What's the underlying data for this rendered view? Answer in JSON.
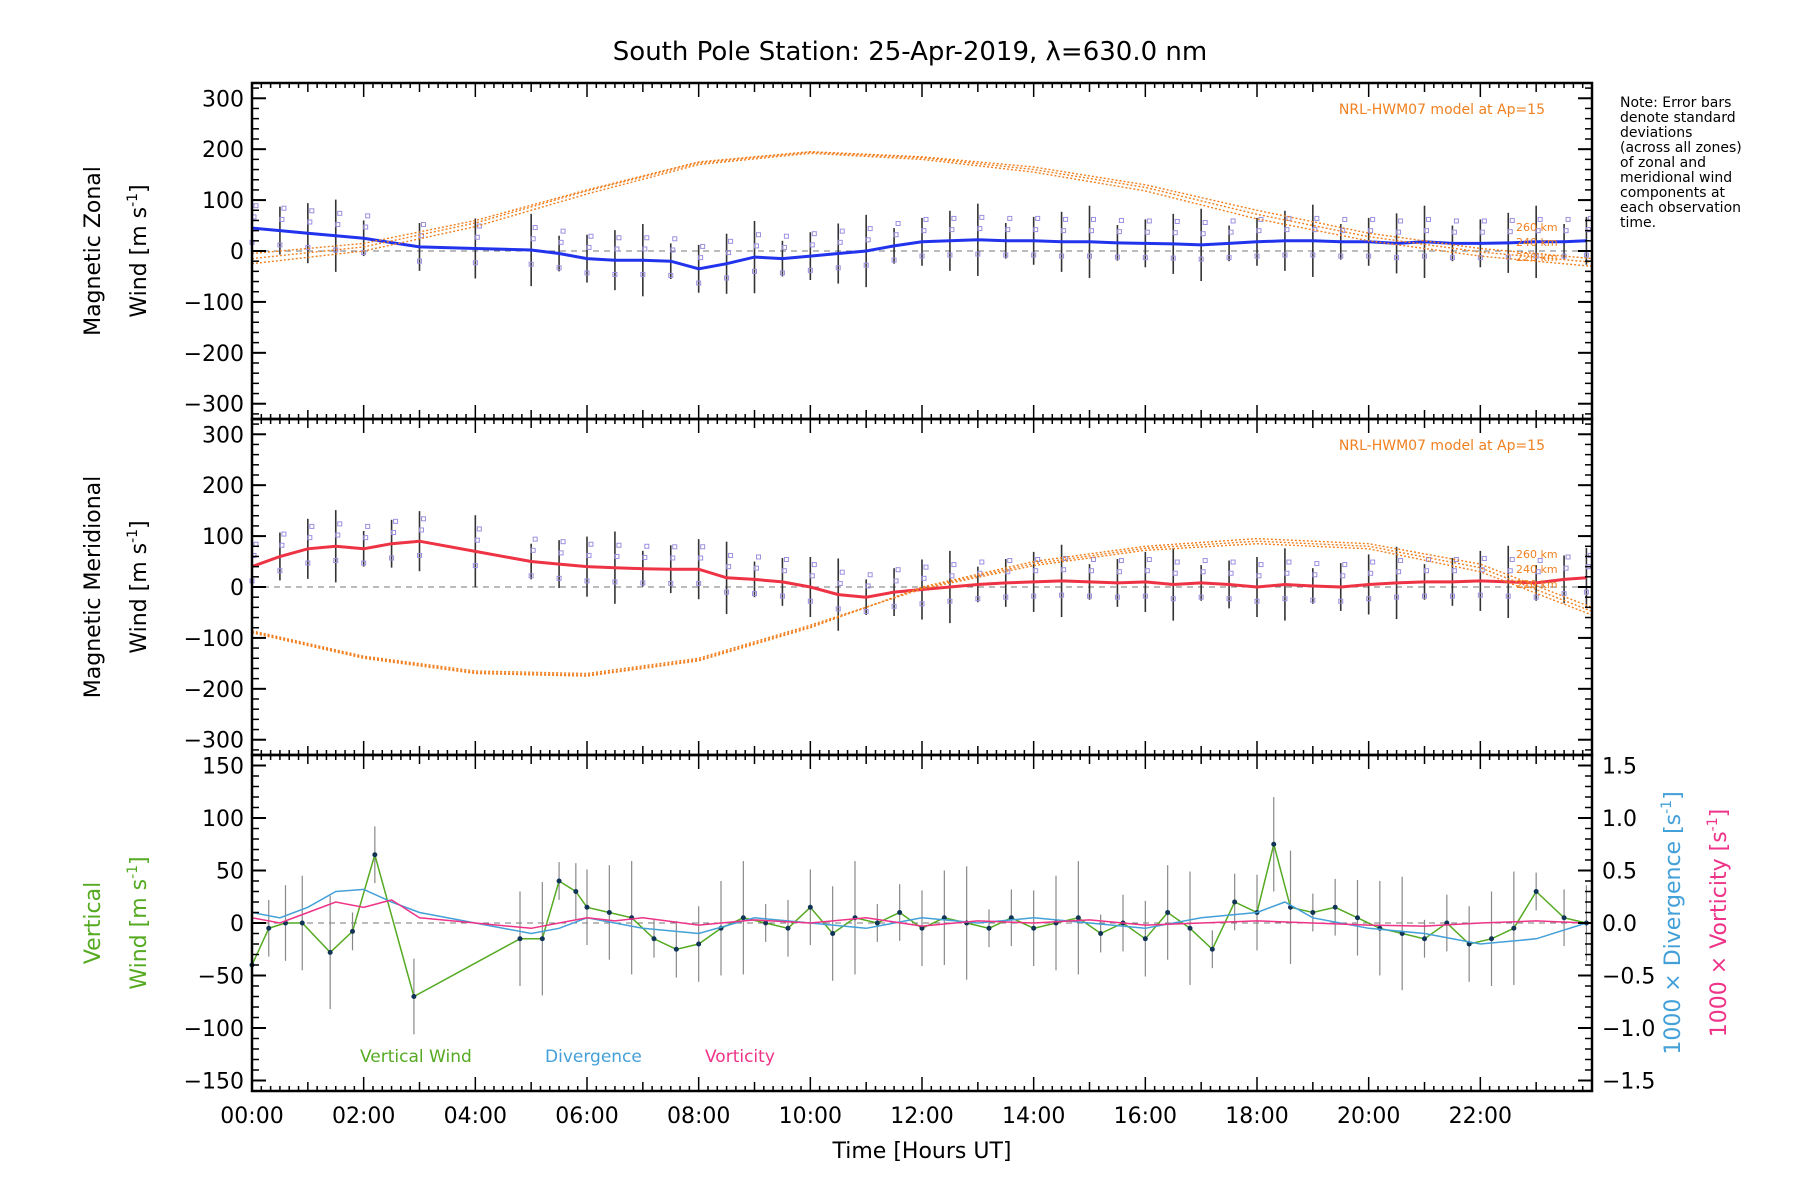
{
  "chart_data": [
    {
      "type": "line",
      "panel": "zonal",
      "title": "South Pole Station: 25-Apr-2019, λ=630.0 nm",
      "ylabel_line1": "Magnetic Zonal",
      "ylabel_line2": "Wind [m s",
      "ylabel_exp": "-1",
      "ylabel_close": "]",
      "ylim": [
        -330,
        330
      ],
      "yticks": [
        300,
        200,
        100,
        0,
        -100,
        -200,
        -300
      ],
      "xlim": [
        0,
        24
      ],
      "model_label": "NRL-HWM07 model at Ap=15",
      "model_altitudes": [
        "260 km",
        "240 km",
        "220 km"
      ],
      "series": [
        {
          "name": "Zonal wind",
          "color": "#2233ee",
          "x": [
            0,
            0.5,
            1,
            1.5,
            2,
            3,
            4,
            5,
            5.5,
            6,
            6.5,
            7,
            7.5,
            8,
            8.5,
            9,
            9.5,
            10,
            10.5,
            11,
            11.5,
            12,
            12.5,
            13,
            13.5,
            14,
            14.5,
            15,
            15.5,
            16,
            16.5,
            17,
            17.5,
            18,
            18.5,
            19,
            19.5,
            20,
            20.5,
            21,
            21.5,
            22,
            22.5,
            23,
            23.5,
            23.9
          ],
          "values": [
            45,
            40,
            35,
            30,
            25,
            8,
            5,
            2,
            -5,
            -15,
            -18,
            -18,
            -20,
            -35,
            -25,
            -12,
            -15,
            -10,
            -5,
            0,
            10,
            18,
            20,
            22,
            20,
            20,
            18,
            18,
            16,
            15,
            14,
            12,
            15,
            18,
            20,
            20,
            18,
            18,
            15,
            18,
            15,
            15,
            16,
            18,
            18,
            20
          ]
        },
        {
          "name": "HWM07 260 km",
          "color": "#f08020",
          "x": [
            0,
            2,
            4,
            6,
            8,
            10,
            12,
            14,
            16,
            18,
            20,
            22,
            24
          ],
          "values": [
            -5,
            15,
            60,
            120,
            175,
            195,
            185,
            165,
            130,
            80,
            35,
            5,
            -15
          ]
        },
        {
          "name": "HWM07 240 km",
          "color": "#f08020",
          "x": [
            0,
            2,
            4,
            6,
            8,
            10,
            12,
            14,
            16,
            18,
            20,
            22,
            24
          ],
          "values": [
            -15,
            8,
            55,
            118,
            173,
            194,
            183,
            160,
            125,
            72,
            28,
            -2,
            -22
          ]
        },
        {
          "name": "HWM07 220 km",
          "color": "#f08020",
          "x": [
            0,
            2,
            4,
            6,
            8,
            10,
            12,
            14,
            16,
            18,
            20,
            22,
            24
          ],
          "values": [
            -25,
            0,
            48,
            112,
            170,
            192,
            180,
            155,
            118,
            63,
            20,
            -10,
            -30
          ]
        }
      ]
    },
    {
      "type": "line",
      "panel": "meridional",
      "ylabel_line1": "Magnetic Meridional",
      "ylabel_line2": "Wind [m s",
      "ylabel_exp": "-1",
      "ylabel_close": "]",
      "ylim": [
        -330,
        330
      ],
      "yticks": [
        300,
        200,
        100,
        0,
        -100,
        -200,
        -300
      ],
      "xlim": [
        0,
        24
      ],
      "model_label": "NRL-HWM07 model at Ap=15",
      "model_altitudes": [
        "260 km",
        "240 km",
        "220 km"
      ],
      "series": [
        {
          "name": "Meridional wind",
          "color": "#ee3344",
          "x": [
            0,
            0.5,
            1,
            1.5,
            2,
            2.5,
            3,
            4,
            5,
            5.5,
            6,
            6.5,
            7,
            7.5,
            8,
            8.5,
            9,
            9.5,
            10,
            10.5,
            11,
            11.5,
            12,
            12.5,
            13,
            13.5,
            14,
            14.5,
            15,
            15.5,
            16,
            16.5,
            17,
            17.5,
            18,
            18.5,
            19,
            19.5,
            20,
            20.5,
            21,
            21.5,
            22,
            22.5,
            23,
            23.5,
            23.9
          ],
          "values": [
            40,
            60,
            75,
            80,
            75,
            85,
            90,
            70,
            50,
            45,
            40,
            38,
            36,
            35,
            35,
            18,
            15,
            10,
            0,
            -15,
            -20,
            -10,
            -5,
            0,
            5,
            8,
            10,
            12,
            10,
            8,
            10,
            5,
            8,
            5,
            0,
            5,
            2,
            0,
            5,
            8,
            10,
            10,
            12,
            10,
            8,
            15,
            18
          ]
        },
        {
          "name": "HWM07 260 km",
          "color": "#f08020",
          "x": [
            0,
            2,
            4,
            6,
            8,
            10,
            12,
            14,
            16,
            18,
            20,
            22,
            24
          ],
          "values": [
            -90,
            -140,
            -170,
            -175,
            -145,
            -80,
            0,
            50,
            80,
            95,
            85,
            45,
            -40
          ]
        },
        {
          "name": "HWM07 240 km",
          "color": "#f08020",
          "x": [
            0,
            2,
            4,
            6,
            8,
            10,
            12,
            14,
            16,
            18,
            20,
            22,
            24
          ],
          "values": [
            -88,
            -138,
            -168,
            -173,
            -143,
            -78,
            -2,
            46,
            76,
            90,
            80,
            38,
            -48
          ]
        },
        {
          "name": "HWM07 220 km",
          "color": "#f08020",
          "x": [
            0,
            2,
            4,
            6,
            8,
            10,
            12,
            14,
            16,
            18,
            20,
            22,
            24
          ],
          "values": [
            -86,
            -136,
            -165,
            -170,
            -140,
            -75,
            -4,
            42,
            72,
            85,
            75,
            30,
            -55
          ]
        }
      ]
    },
    {
      "type": "line",
      "panel": "vertical",
      "ylabel_line1": "Vertical",
      "ylabel_line2": "Wind [m s",
      "ylabel_exp": "-1",
      "ylabel_close": "]",
      "ylim": [
        -160,
        160
      ],
      "yticks": [
        150,
        100,
        50,
        0,
        -50,
        -100,
        -150
      ],
      "y2lim": [
        -1.6,
        1.6
      ],
      "y2ticks": [
        "1.5",
        "1.0",
        "0.5",
        "0.0",
        "-0.5",
        "-1.0",
        "-1.5"
      ],
      "y2label_div": "1000 × Divergence [s",
      "y2label_vort": "1000 × Vorticity [s",
      "y2label_exp": "-1",
      "y2label_close": "]",
      "xlabel": "Time [Hours UT]",
      "xticks": [
        "00:00",
        "02:00",
        "04:00",
        "06:00",
        "08:00",
        "10:00",
        "12:00",
        "14:00",
        "16:00",
        "18:00",
        "20:00",
        "22:00"
      ],
      "xlim": [
        0,
        24
      ],
      "legend": [
        "Vertical Wind",
        "Divergence",
        "Vorticity"
      ],
      "series": [
        {
          "name": "Vertical Wind",
          "color": "#55aa22",
          "x": [
            0,
            0.3,
            0.6,
            0.9,
            1.4,
            1.8,
            2.2,
            2.9,
            4.8,
            5.2,
            5.5,
            5.8,
            6.0,
            6.4,
            6.8,
            7.2,
            7.6,
            8.0,
            8.4,
            8.8,
            9.2,
            9.6,
            10.0,
            10.4,
            10.8,
            11.2,
            11.6,
            12.0,
            12.4,
            12.8,
            13.2,
            13.6,
            14.0,
            14.4,
            14.8,
            15.2,
            15.6,
            16.0,
            16.4,
            16.8,
            17.2,
            17.6,
            18.0,
            18.3,
            18.6,
            19.0,
            19.4,
            19.8,
            20.2,
            20.6,
            21.0,
            21.4,
            21.8,
            22.2,
            22.6,
            23.0,
            23.5,
            23.9
          ],
          "values": [
            -40,
            -5,
            0,
            0,
            -28,
            -8,
            65,
            -70,
            -15,
            -15,
            40,
            30,
            15,
            10,
            5,
            -15,
            -25,
            -20,
            -5,
            5,
            0,
            -5,
            15,
            -10,
            5,
            0,
            10,
            -5,
            5,
            0,
            -5,
            5,
            -5,
            0,
            5,
            -10,
            0,
            -15,
            10,
            -5,
            -25,
            20,
            10,
            75,
            15,
            10,
            15,
            5,
            -5,
            -10,
            -15,
            0,
            -20,
            -15,
            -5,
            30,
            5,
            0
          ]
        },
        {
          "name": "Divergence",
          "color": "#44a0d8",
          "axis": "y2",
          "x": [
            0,
            0.5,
            1,
            1.5,
            2,
            2.5,
            3,
            4,
            5,
            5.5,
            6,
            6.5,
            7,
            8,
            9,
            10,
            11,
            12,
            13,
            14,
            15,
            16,
            17,
            18,
            18.5,
            19,
            20,
            21,
            22,
            23,
            23.9
          ],
          "values": [
            0.1,
            0.05,
            0.15,
            0.3,
            0.32,
            0.2,
            0.1,
            0.0,
            -0.1,
            -0.05,
            0.05,
            0.0,
            -0.05,
            -0.1,
            0.05,
            0.0,
            -0.05,
            0.05,
            0.0,
            0.05,
            0.0,
            -0.05,
            0.05,
            0.1,
            0.2,
            0.05,
            -0.05,
            -0.1,
            -0.2,
            -0.15,
            0.0
          ]
        },
        {
          "name": "Vorticity",
          "color": "#ee3388",
          "axis": "y2",
          "x": [
            0,
            0.5,
            1,
            1.5,
            2,
            2.5,
            3,
            4,
            5,
            5.5,
            6,
            6.5,
            7,
            8,
            9,
            10,
            11,
            12,
            13,
            14,
            15,
            16,
            17,
            18,
            19,
            20,
            21,
            22,
            23,
            23.9
          ],
          "values": [
            0.05,
            0.0,
            0.1,
            0.2,
            0.15,
            0.22,
            0.05,
            0.0,
            -0.05,
            0.0,
            0.05,
            0.02,
            0.05,
            -0.02,
            0.03,
            0.0,
            0.05,
            -0.03,
            0.02,
            0.0,
            0.03,
            -0.02,
            0.0,
            0.02,
            0.0,
            -0.02,
            -0.03,
            0.0,
            0.02,
            0.0
          ]
        }
      ]
    }
  ],
  "note": {
    "lines": [
      "Note: Error bars",
      "denote standard",
      "deviations",
      "(across all zones)",
      "of zonal and",
      "meridional wind",
      "components at",
      "each observation",
      "time."
    ]
  }
}
